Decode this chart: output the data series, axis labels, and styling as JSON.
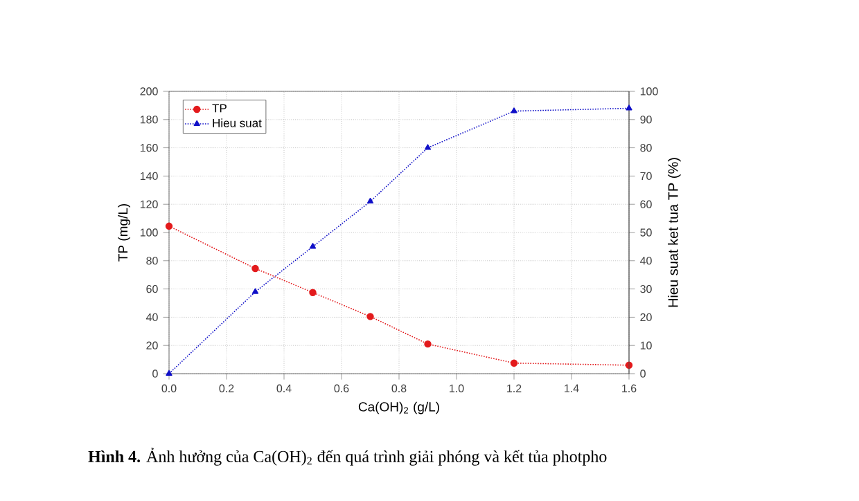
{
  "chart_data": {
    "type": "line",
    "xlabel": "Ca(OH)$_{2}$ (g/L)",
    "ylabel": "TP (mg/L)",
    "y2label": "Hieu suat ket tua TP (%)",
    "x": [
      0,
      0.3,
      0.5,
      0.7,
      0.9,
      1.2,
      1.6
    ],
    "series": [
      {
        "name": "TP",
        "color": "#e31a1c",
        "marker": "circle",
        "values": [
          104.5,
          74.5,
          57.5,
          40.5,
          21,
          7.5,
          6
        ]
      },
      {
        "name": "Hieu suat",
        "color": "#1010c8",
        "marker": "triangle",
        "axis": "y2",
        "values": [
          0,
          29,
          45,
          61,
          80,
          93,
          94
        ]
      }
    ],
    "xlim": [
      0,
      1.6
    ],
    "xticks": [
      {
        "value": 0,
        "label": "0.0"
      },
      {
        "value": 0.2,
        "label": "0.2"
      },
      {
        "value": 0.4,
        "label": "0.4"
      },
      {
        "value": 0.6,
        "label": "0.6"
      },
      {
        "value": 0.8,
        "label": "0.8"
      },
      {
        "value": 1.0,
        "label": "1.0"
      },
      {
        "value": 1.2,
        "label": "1.2"
      },
      {
        "value": 1.4,
        "label": "1.4"
      },
      {
        "value": 1.6,
        "label": "1.6"
      }
    ],
    "ylim": [
      0,
      200
    ],
    "yticks": [
      0,
      20,
      40,
      60,
      80,
      100,
      120,
      140,
      160,
      180,
      200
    ],
    "y2lim": [
      0,
      100
    ],
    "y2ticks": [
      0,
      10,
      20,
      30,
      40,
      50,
      60,
      70,
      80,
      90,
      100
    ],
    "grid": true,
    "legend": "top left",
    "line_style": "dotted",
    "annotations": [
      "**Hình 4.** Ảnh hưởng của Ca(OH)$_{2}$ đến quá trình giải phóng và kết tủa photpho"
    ]
  }
}
